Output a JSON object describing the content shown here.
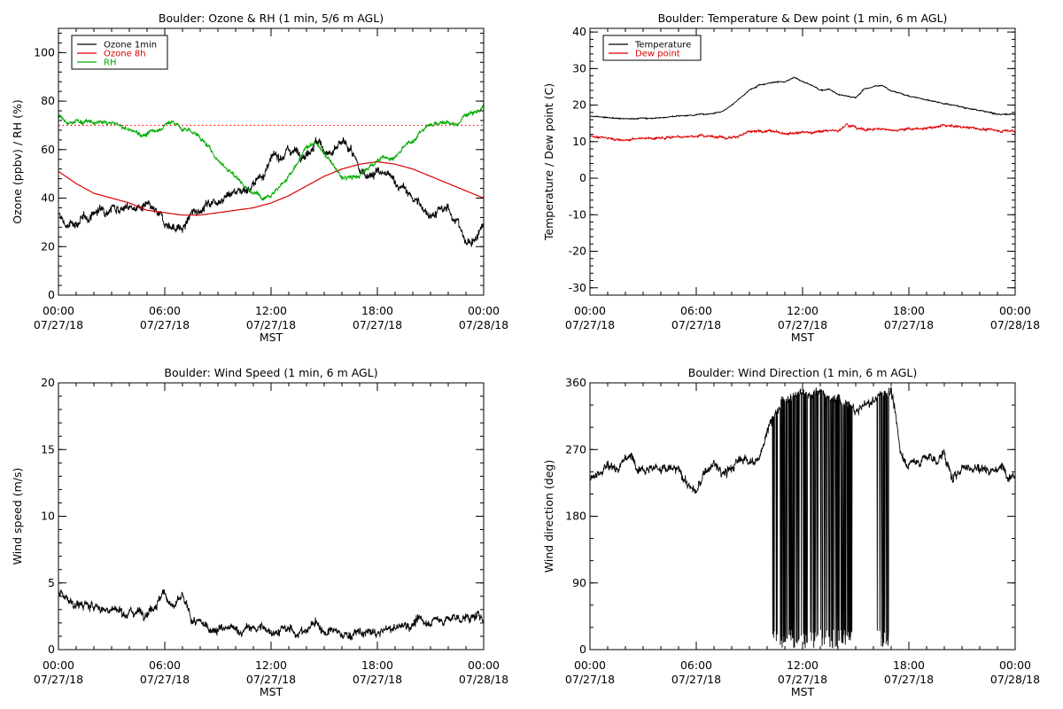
{
  "figure": {
    "width": 1200,
    "height": 800
  },
  "chart_data": [
    {
      "id": "ozone-rh",
      "type": "line",
      "title": "Boulder: Ozone & RH (1 min, 5/6 m AGL)",
      "xlabel": "MST",
      "ylabel": "Ozone (ppbv) / RH (%)",
      "xlim": [
        0,
        24
      ],
      "ylim": [
        0,
        110
      ],
      "xticks": [
        {
          "value": 0,
          "label": "00:00",
          "date": "07/27/18"
        },
        {
          "value": 6,
          "label": "06:00",
          "date": "07/27/18"
        },
        {
          "value": 12,
          "label": "12:00",
          "date": "07/27/18"
        },
        {
          "value": 18,
          "label": "18:00",
          "date": "07/27/18"
        },
        {
          "value": 24,
          "label": "00:00",
          "date": "07/28/18"
        }
      ],
      "yticks": [
        0,
        20,
        40,
        60,
        80,
        100
      ],
      "grid": false,
      "legend_position": "top-left",
      "reference_lines": [
        {
          "y": 70,
          "color": "#ff0000",
          "style": "dotted"
        }
      ],
      "series": [
        {
          "name": "Ozone 1min",
          "color": "#000000",
          "noise": 2.5,
          "x": [
            0,
            0.5,
            1,
            1.5,
            2,
            3,
            4,
            5,
            6,
            7,
            7.5,
            8,
            9,
            10,
            11,
            11.5,
            12,
            13,
            14,
            14.5,
            15,
            15.5,
            16,
            16.5,
            17,
            18,
            19,
            20,
            20.5,
            21,
            22,
            22.5,
            23,
            23.5,
            24
          ],
          "y": [
            33,
            28,
            30,
            31,
            34,
            37,
            36,
            36,
            30,
            27,
            33,
            36,
            40,
            43,
            45,
            50,
            55,
            60,
            59,
            64,
            60,
            58,
            62,
            60,
            50,
            51,
            47,
            40,
            36,
            34,
            35,
            31,
            21,
            23,
            31
          ]
        },
        {
          "name": "Ozone 8h",
          "color": "#dd0000",
          "noise": 0,
          "x": [
            0,
            1,
            2,
            3,
            4,
            5,
            6,
            7,
            8,
            9,
            10,
            11,
            12,
            13,
            14,
            15,
            16,
            17,
            18,
            19,
            20,
            21,
            22,
            23,
            24
          ],
          "y": [
            51,
            46,
            42,
            40,
            38,
            35,
            34,
            33,
            33,
            34,
            35,
            36,
            38,
            41,
            45,
            49,
            52,
            54,
            55,
            54,
            52,
            49,
            46,
            43,
            40
          ]
        },
        {
          "name": "RH",
          "color": "#00aa00",
          "noise": 1.2,
          "x": [
            0,
            0.5,
            1,
            2,
            3,
            4,
            5,
            6,
            6.5,
            7,
            7.5,
            8,
            9,
            10,
            11,
            11.5,
            12,
            12.5,
            13,
            13.5,
            14,
            14.5,
            15,
            15.5,
            16,
            17,
            18,
            19,
            20,
            21,
            22,
            22.5,
            23,
            23.5,
            24
          ],
          "y": [
            74,
            70,
            72,
            71,
            71,
            68,
            66,
            70,
            72,
            68,
            68,
            65,
            56,
            49,
            42,
            41,
            42,
            45,
            49,
            54,
            61,
            63,
            58,
            54,
            48,
            49,
            56,
            57,
            64,
            71,
            71,
            70,
            75,
            76,
            77
          ]
        }
      ]
    },
    {
      "id": "temp-dew",
      "type": "line",
      "title": "Boulder: Temperature & Dew point (1 min, 6 m AGL)",
      "xlabel": "MST",
      "ylabel": "Temperature / Dew point (C)",
      "xlim": [
        0,
        24
      ],
      "ylim": [
        -32,
        41
      ],
      "xticks": [
        {
          "value": 0,
          "label": "00:00",
          "date": "07/27/18"
        },
        {
          "value": 6,
          "label": "06:00",
          "date": "07/27/18"
        },
        {
          "value": 12,
          "label": "12:00",
          "date": "07/27/18"
        },
        {
          "value": 18,
          "label": "18:00",
          "date": "07/27/18"
        },
        {
          "value": 24,
          "label": "00:00",
          "date": "07/28/18"
        }
      ],
      "yticks": [
        -30,
        -20,
        -10,
        0,
        10,
        20,
        30,
        40
      ],
      "grid": false,
      "legend_position": "top-left",
      "series": [
        {
          "name": "Temperature",
          "color": "#000000",
          "noise": 0.2,
          "x": [
            0,
            1,
            2,
            3,
            4,
            5,
            6,
            7,
            7.5,
            8,
            8.5,
            9,
            9.5,
            10,
            10.5,
            11,
            11.5,
            12,
            12.5,
            13,
            13.5,
            14,
            14.5,
            15,
            15.5,
            16,
            16.5,
            17,
            18,
            19,
            20,
            21,
            22,
            23,
            24
          ],
          "y": [
            17,
            16.5,
            16.3,
            16.4,
            16.6,
            17,
            17.4,
            17.8,
            18.5,
            20,
            22,
            24,
            25.5,
            26,
            26.5,
            26.2,
            27.5,
            26.5,
            25.5,
            24,
            24.5,
            23,
            22.5,
            22,
            24.5,
            25,
            25.5,
            24,
            22.5,
            21.5,
            20.5,
            19.5,
            18.5,
            17.5,
            17.5
          ]
        },
        {
          "name": "Dew point",
          "color": "#dd0000",
          "noise": 0.4,
          "x": [
            0,
            1,
            2,
            3,
            4,
            5,
            6,
            7,
            8,
            8.5,
            9,
            10,
            11,
            12,
            13,
            14,
            14.5,
            15,
            15.5,
            16,
            17,
            18,
            19,
            20,
            21,
            22,
            23,
            24
          ],
          "y": [
            11.5,
            11,
            10.5,
            11,
            11,
            11.5,
            11.5,
            11.5,
            11.2,
            11.8,
            12.5,
            12.8,
            12.5,
            12.5,
            12.8,
            13,
            15,
            14,
            13.2,
            13.5,
            13.3,
            13.5,
            13.5,
            14.5,
            14,
            13.5,
            13,
            13
          ]
        }
      ]
    },
    {
      "id": "wind-speed",
      "type": "line",
      "title": "Boulder: Wind Speed (1 min, 6 m AGL)",
      "xlabel": "MST",
      "ylabel": "Wind speed (m/s)",
      "xlim": [
        0,
        24
      ],
      "ylim": [
        0,
        20
      ],
      "xticks": [
        {
          "value": 0,
          "label": "00:00",
          "date": "07/27/18"
        },
        {
          "value": 6,
          "label": "06:00",
          "date": "07/27/18"
        },
        {
          "value": 12,
          "label": "12:00",
          "date": "07/27/18"
        },
        {
          "value": 18,
          "label": "18:00",
          "date": "07/27/18"
        },
        {
          "value": 24,
          "label": "00:00",
          "date": "07/28/18"
        }
      ],
      "yticks": [
        0,
        5,
        10,
        15,
        20
      ],
      "grid": false,
      "series": [
        {
          "name": "",
          "color": "#000000",
          "noise": 0.45,
          "x": [
            0,
            0.5,
            1,
            2,
            3,
            4,
            5,
            5.5,
            6,
            6.5,
            7,
            7.5,
            8,
            9,
            10,
            11,
            12,
            13,
            14,
            14.5,
            15,
            16,
            17,
            18,
            19,
            20,
            21,
            22,
            23,
            24
          ],
          "y": [
            4.3,
            3.8,
            3.4,
            3.2,
            3,
            2.8,
            3,
            3.6,
            4.2,
            3.2,
            3.8,
            2.2,
            1.8,
            1.6,
            1.4,
            1.6,
            1.5,
            1.4,
            1.3,
            2.2,
            1.4,
            1.1,
            1.2,
            1.2,
            1.6,
            2,
            2.2,
            2.3,
            2.4,
            2.4
          ]
        }
      ]
    },
    {
      "id": "wind-direction",
      "type": "line",
      "title": "Boulder: Wind Direction (1 min, 6 m AGL)",
      "xlabel": "MST",
      "ylabel": "Wind direction (deg)",
      "xlim": [
        0,
        24
      ],
      "ylim": [
        0,
        360
      ],
      "xticks": [
        {
          "value": 0,
          "label": "00:00",
          "date": "07/27/18"
        },
        {
          "value": 6,
          "label": "06:00",
          "date": "07/27/18"
        },
        {
          "value": 12,
          "label": "12:00",
          "date": "07/27/18"
        },
        {
          "value": 18,
          "label": "18:00",
          "date": "07/27/18"
        },
        {
          "value": 24,
          "label": "00:00",
          "date": "07/28/18"
        }
      ],
      "yticks": [
        0,
        90,
        180,
        270,
        360
      ],
      "grid": false,
      "series": [
        {
          "name": "",
          "color": "#000000",
          "noise": 9,
          "wrap_spans": [
            [
              10.2,
              14.8
            ],
            [
              16.2,
              16.9
            ]
          ],
          "x": [
            0,
            0.5,
            1,
            1.5,
            2,
            2.5,
            3,
            4,
            5,
            5.5,
            6,
            6.5,
            7,
            7.5,
            8,
            8.5,
            9,
            9.5,
            10,
            11,
            12,
            13,
            14,
            15,
            16,
            17,
            17.5,
            18,
            19,
            19.5,
            20,
            20.5,
            21,
            22,
            23,
            24
          ],
          "y": [
            230,
            240,
            250,
            245,
            262,
            255,
            250,
            245,
            240,
            225,
            210,
            240,
            250,
            235,
            245,
            255,
            260,
            250,
            300,
            340,
            350,
            345,
            340,
            320,
            335,
            350,
            270,
            250,
            260,
            255,
            265,
            225,
            250,
            245,
            245,
            240
          ]
        }
      ]
    }
  ]
}
